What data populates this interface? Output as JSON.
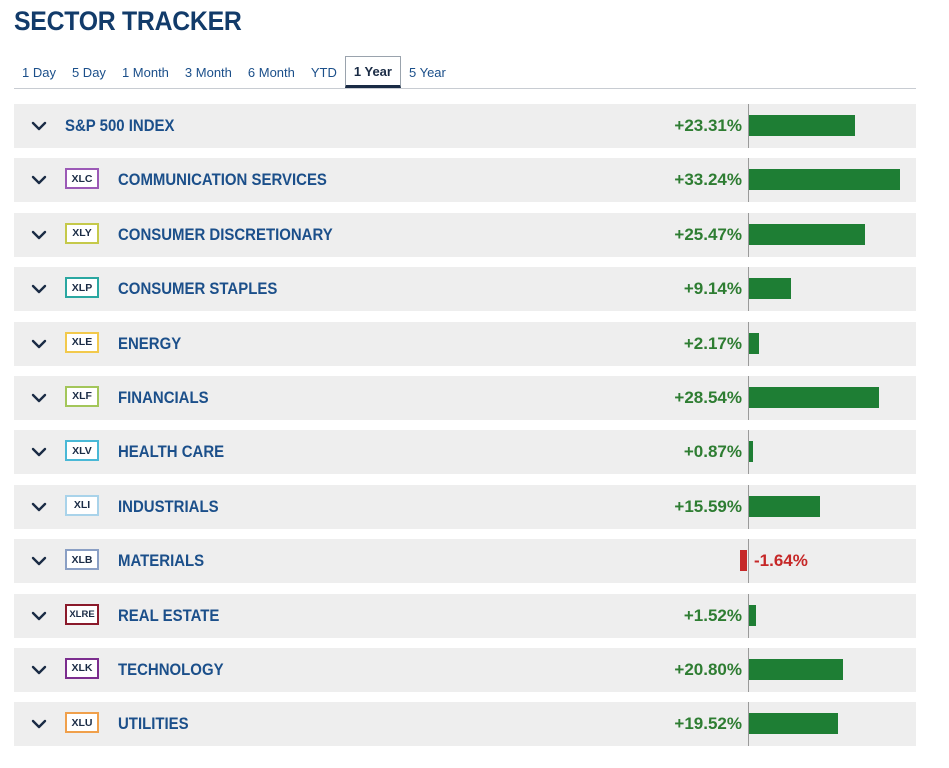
{
  "header": {
    "title": "SECTOR TRACKER"
  },
  "tabs": [
    {
      "label": "1 Day",
      "active": false
    },
    {
      "label": "5 Day",
      "active": false
    },
    {
      "label": "1 Month",
      "active": false
    },
    {
      "label": "3 Month",
      "active": false
    },
    {
      "label": "6 Month",
      "active": false
    },
    {
      "label": "YTD",
      "active": false
    },
    {
      "label": "1 Year",
      "active": true
    },
    {
      "label": "5 Year",
      "active": false
    }
  ],
  "max_abs_value": 33.24,
  "rows": [
    {
      "ticker": "",
      "name": "S&P 500 INDEX",
      "pct_label": "+23.31%",
      "value": 23.31,
      "ticker_color": ""
    },
    {
      "ticker": "XLC",
      "name": "COMMUNICATION SERVICES",
      "pct_label": "+33.24%",
      "value": 33.24,
      "ticker_color": "#9b59b6"
    },
    {
      "ticker": "XLY",
      "name": "CONSUMER DISCRETIONARY",
      "pct_label": "+25.47%",
      "value": 25.47,
      "ticker_color": "#c5c94a"
    },
    {
      "ticker": "XLP",
      "name": "CONSUMER STAPLES",
      "pct_label": "+9.14%",
      "value": 9.14,
      "ticker_color": "#2aa7a1"
    },
    {
      "ticker": "XLE",
      "name": "ENERGY",
      "pct_label": "+2.17%",
      "value": 2.17,
      "ticker_color": "#f2c94c"
    },
    {
      "ticker": "XLF",
      "name": "FINANCIALS",
      "pct_label": "+28.54%",
      "value": 28.54,
      "ticker_color": "#a3c65a"
    },
    {
      "ticker": "XLV",
      "name": "HEALTH CARE",
      "pct_label": "+0.87%",
      "value": 0.87,
      "ticker_color": "#49b8d6"
    },
    {
      "ticker": "XLI",
      "name": "INDUSTRIALS",
      "pct_label": "+15.59%",
      "value": 15.59,
      "ticker_color": "#a9d3ea"
    },
    {
      "ticker": "XLB",
      "name": "MATERIALS",
      "pct_label": "-1.64%",
      "value": -1.64,
      "ticker_color": "#8a9fc4"
    },
    {
      "ticker": "XLRE",
      "name": "REAL ESTATE",
      "pct_label": "+1.52%",
      "value": 1.52,
      "ticker_color": "#8b1a2b"
    },
    {
      "ticker": "XLK",
      "name": "TECHNOLOGY",
      "pct_label": "+20.80%",
      "value": 20.8,
      "ticker_color": "#7b2d8e"
    },
    {
      "ticker": "XLU",
      "name": "UTILITIES",
      "pct_label": "+19.52%",
      "value": 19.52,
      "ticker_color": "#f0a04b"
    }
  ],
  "colors": {
    "positive": "#1e7e34",
    "negative": "#c62828",
    "title": "#123b6a",
    "link": "#1b4f8a"
  },
  "icons": {
    "expand": "chevron-down-icon"
  }
}
